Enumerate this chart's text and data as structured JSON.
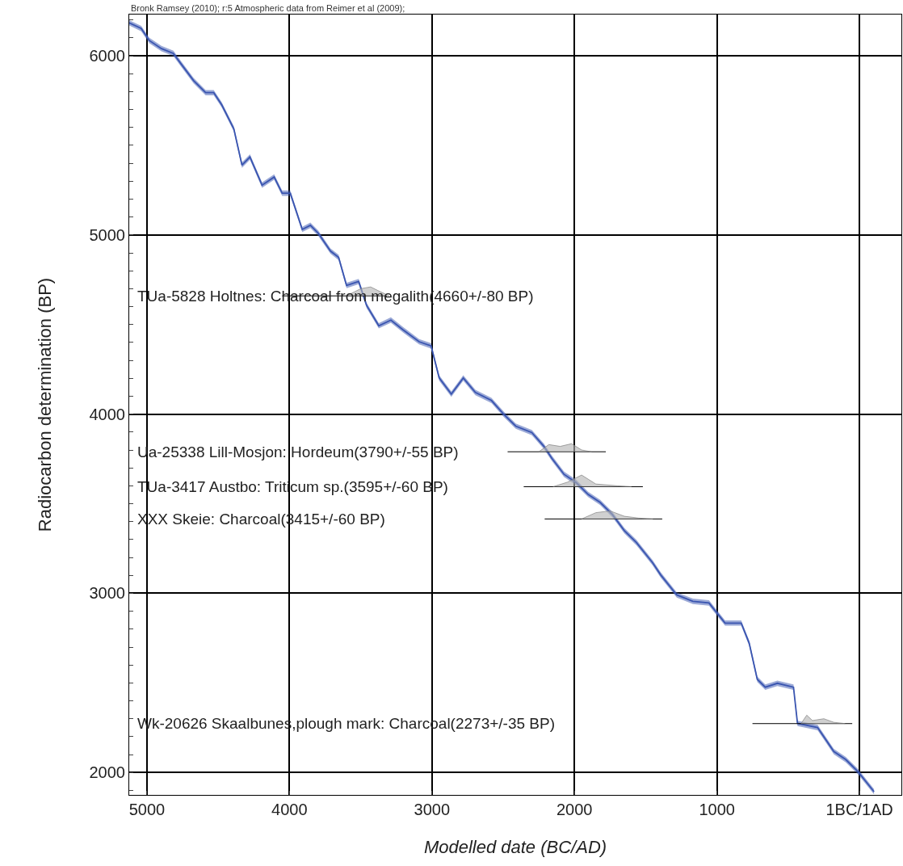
{
  "chart_data": {
    "type": "line",
    "title": "Bronk Ramsey (2010); r:5 Atmospheric data from Reimer et al (2009);",
    "xlabel": "Modelled date (BC/AD)",
    "ylabel": "Radiocarbon determination (BP)",
    "xlim": [
      -5124,
      294
    ],
    "ylim": [
      1875,
      6230
    ],
    "xticks": [
      {
        "value": -5000,
        "label": "5000"
      },
      {
        "value": -4000,
        "label": "4000"
      },
      {
        "value": -3000,
        "label": "3000"
      },
      {
        "value": -2000,
        "label": "2000"
      },
      {
        "value": -1000,
        "label": "1000"
      },
      {
        "value": 0,
        "label": "1BC/1AD"
      }
    ],
    "yticks": [
      2000,
      3000,
      4000,
      5000,
      6000
    ],
    "grid": true,
    "series": [
      {
        "color": "#3a55b0",
        "x": [
          -5124,
          -5040,
          -4983,
          -4898,
          -4814,
          -4757,
          -4672,
          -4588,
          -4531,
          -4475,
          -4390,
          -4333,
          -4277,
          -4192,
          -4107,
          -4051,
          -3994,
          -3910,
          -3853,
          -3797,
          -3712,
          -3655,
          -3599,
          -3514,
          -3458,
          -3373,
          -3288,
          -3203,
          -3090,
          -3006,
          -2949,
          -2864,
          -2780,
          -2695,
          -2582,
          -2497,
          -2412,
          -2299,
          -2215,
          -2158,
          -2073,
          -1989,
          -1904,
          -1819,
          -1734,
          -1650,
          -1565,
          -1452,
          -1395,
          -1282,
          -1169,
          -1056,
          -943,
          -830,
          -774,
          -717,
          -661,
          -576,
          -463,
          -435,
          -294,
          -180,
          -96,
          -11,
          102
        ],
        "values": [
          6184,
          6152,
          6085,
          6040,
          6013,
          5951,
          5861,
          5794,
          5794,
          5726,
          5592,
          5390,
          5435,
          5278,
          5323,
          5233,
          5233,
          5031,
          5054,
          5009,
          4910,
          4875,
          4718,
          4740,
          4606,
          4493,
          4525,
          4471,
          4404,
          4381,
          4202,
          4112,
          4202,
          4121,
          4076,
          4000,
          3933,
          3897,
          3821,
          3753,
          3664,
          3619,
          3552,
          3507,
          3440,
          3350,
          3283,
          3171,
          3103,
          2991,
          2955,
          2946,
          2834,
          2834,
          2722,
          2520,
          2476,
          2498,
          2476,
          2274,
          2251,
          2117,
          2072,
          2005,
          1893
        ],
        "lower": [
          6169,
          6137,
          6070,
          6025,
          5998,
          5936,
          5846,
          5779,
          5779,
          5711,
          5577,
          5375,
          5420,
          5263,
          5308,
          5218,
          5218,
          5016,
          5039,
          4994,
          4895,
          4860,
          4703,
          4725,
          4591,
          4478,
          4510,
          4456,
          4389,
          4366,
          4187,
          4097,
          4187,
          4106,
          4061,
          3985,
          3918,
          3882,
          3806,
          3738,
          3649,
          3604,
          3537,
          3492,
          3425,
          3335,
          3268,
          3156,
          3088,
          2976,
          2940,
          2931,
          2819,
          2819,
          2707,
          2505,
          2461,
          2483,
          2461,
          2259,
          2236,
          2102,
          2057,
          1990,
          1878
        ],
        "upper": [
          6199,
          6167,
          6100,
          6055,
          6028,
          5966,
          5876,
          5809,
          5809,
          5741,
          5607,
          5405,
          5450,
          5293,
          5338,
          5248,
          5248,
          5046,
          5069,
          5024,
          4925,
          4890,
          4733,
          4755,
          4621,
          4508,
          4540,
          4486,
          4419,
          4396,
          4217,
          4127,
          4217,
          4136,
          4091,
          4015,
          3948,
          3912,
          3836,
          3768,
          3679,
          3634,
          3567,
          3522,
          3455,
          3365,
          3298,
          3186,
          3118,
          3006,
          2970,
          2961,
          2849,
          2849,
          2737,
          2535,
          2491,
          2513,
          2491,
          2289,
          2266,
          2132,
          2087,
          2020,
          1908
        ]
      },
      {
        "color": "#000000",
        "x": [
          -4051,
          -3316
        ],
        "values": [
          4660,
          4660
        ]
      },
      {
        "type": "area",
        "color": "#b0b0b0",
        "x": [
          -3600,
          -3500,
          -3430,
          -3380,
          -3300
        ],
        "values": [
          4660,
          4700,
          4710,
          4690,
          4660
        ]
      },
      {
        "color": "#000000",
        "x": [
          -2469,
          -1780
        ],
        "values": [
          3790,
          3790
        ]
      },
      {
        "type": "area",
        "color": "#b0b0b0",
        "x": [
          -2250,
          -2180,
          -2100,
          -2020,
          -1950,
          -1880
        ],
        "values": [
          3790,
          3830,
          3820,
          3835,
          3800,
          3790
        ]
      },
      {
        "color": "#000000",
        "x": [
          -2356,
          -1520
        ],
        "values": [
          3595,
          3595
        ]
      },
      {
        "type": "area",
        "color": "#b0b0b0",
        "x": [
          -2150,
          -2050,
          -1950,
          -1850,
          -1700,
          -1600
        ],
        "values": [
          3595,
          3620,
          3660,
          3610,
          3600,
          3595
        ]
      },
      {
        "color": "#000000",
        "x": [
          -2209,
          -1384
        ],
        "values": [
          3415,
          3415
        ]
      },
      {
        "type": "area",
        "color": "#b0b0b0",
        "x": [
          -1950,
          -1850,
          -1750,
          -1650,
          -1550,
          -1450
        ],
        "values": [
          3415,
          3450,
          3460,
          3430,
          3420,
          3415
        ]
      },
      {
        "color": "#000000",
        "x": [
          -751,
          -51
        ],
        "values": [
          2273,
          2273
        ]
      },
      {
        "type": "area",
        "color": "#b0b0b0",
        "x": [
          -410,
          -370,
          -330,
          -250,
          -180,
          -100
        ],
        "values": [
          2273,
          2320,
          2290,
          2300,
          2280,
          2273
        ]
      }
    ],
    "annotations": [
      "TUa-5828 Holtnes: Charcoal from megalith(4660+/-80 BP)",
      "Ua-25338 Lill-Mosjon: Hordeum(3790+/-55 BP)",
      "TUa-3417 Austbo: Triticum sp.(3595+/-60 BP)",
      "XXX Skeie: Charcoal(3415+/-60 BP)",
      "Wk-20626 Skaalbunes,plough mark: Charcoal(2273+/-35 BP)"
    ]
  }
}
